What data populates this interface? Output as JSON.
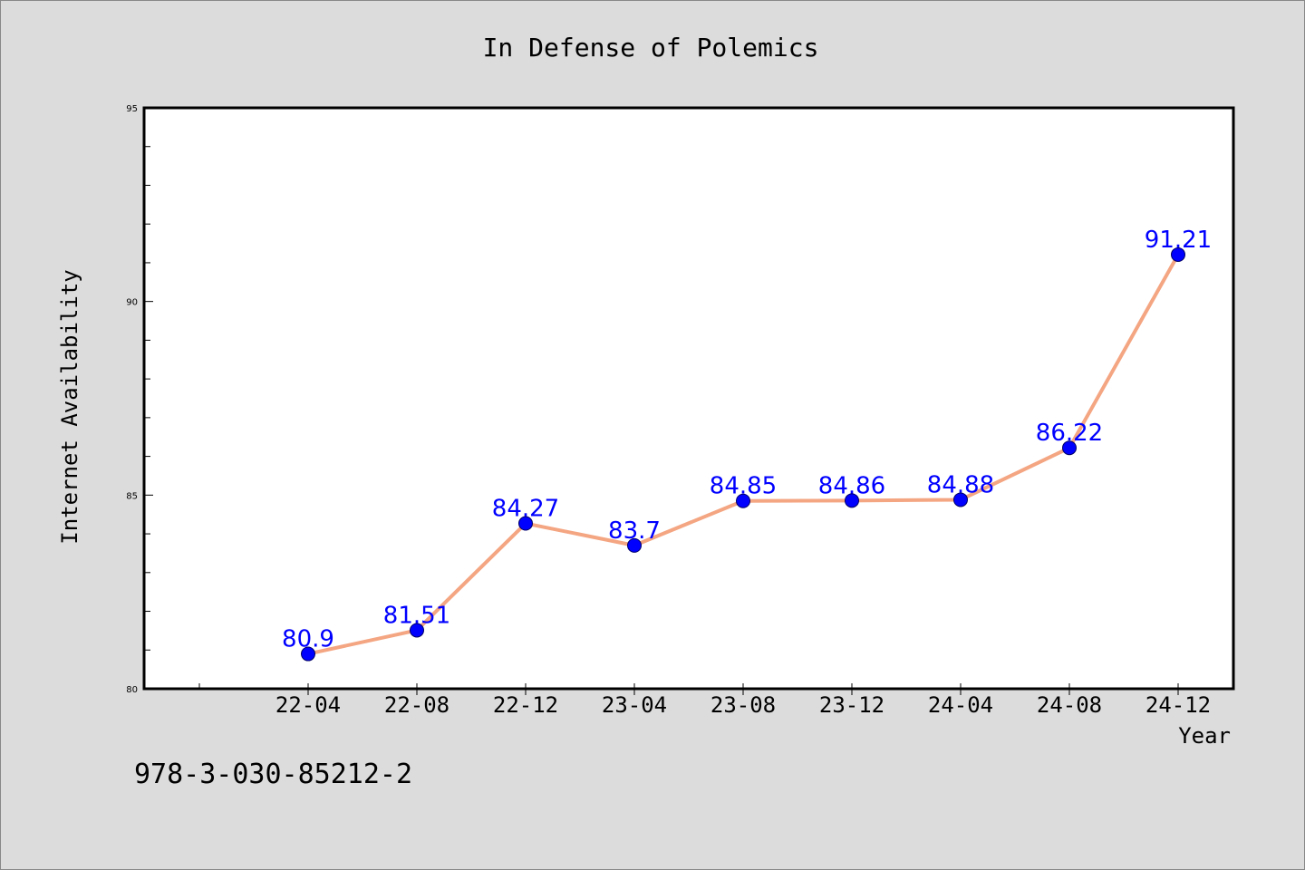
{
  "chart_data": {
    "type": "line",
    "title": "In Defense of Polemics",
    "xlabel": "Year",
    "ylabel": "Internet Availability",
    "categories": [
      "22-04",
      "22-08",
      "22-12",
      "23-04",
      "23-08",
      "23-12",
      "24-04",
      "24-08",
      "24-12"
    ],
    "series": [
      {
        "values": [
          80.9,
          81.51,
          84.27,
          83.7,
          84.85,
          84.86,
          84.88,
          86.22,
          91.21
        ],
        "data_labels": [
          "80.9",
          "81.51",
          "84.27",
          "83.7",
          "84.85",
          "84.86",
          "84.88",
          "86.22",
          "91.21"
        ],
        "line_color": "#f4a582",
        "marker_color": "#0000ff"
      }
    ],
    "ylim": [
      80,
      95
    ],
    "y_ticks": [
      "80",
      "85",
      "90",
      "95"
    ],
    "grid": false,
    "label_color": "#0000ff"
  },
  "footer_text": "978-3-030-85212-2",
  "colors": {
    "background": "#dcdcdc",
    "plot_background": "#ffffff",
    "axis": "#000000"
  }
}
